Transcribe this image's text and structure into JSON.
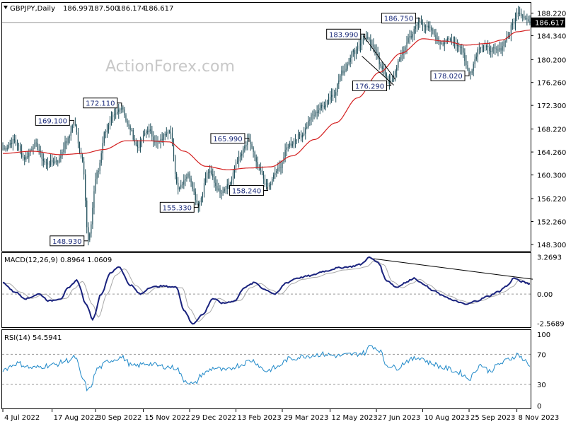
{
  "chart_data": {
    "type": "candlestick",
    "header": {
      "symbol": "GBPJPY,Daily",
      "ohlc": [
        "186.997",
        "187.500",
        "186.174",
        "186.617"
      ]
    },
    "watermark": "ActionForex.com",
    "current_price_label": "186.617",
    "current_price": 186.617,
    "price_axis": {
      "ylim": [
        147.2,
        190.0
      ],
      "ticks": [
        188.22,
        184.34,
        180.2,
        176.26,
        172.3,
        168.22,
        164.26,
        160.3,
        156.22,
        152.26,
        148.3
      ],
      "tick_labels": [
        "188.220",
        "184.340",
        "180.200",
        "176.260",
        "172.300",
        "168.220",
        "164.260",
        "160.300",
        "156.220",
        "152.260",
        "148.300"
      ]
    },
    "x_axis": {
      "bars": 357,
      "ticks": [
        {
          "bar": 0,
          "label": "4 Jul 2022"
        },
        {
          "bar": 34,
          "label": "17 Aug 2022"
        },
        {
          "bar": 64,
          "label": "30 Sep 2022"
        },
        {
          "bar": 97,
          "label": "15 Nov 2022"
        },
        {
          "bar": 129,
          "label": "29 Dec 2022"
        },
        {
          "bar": 161,
          "label": "13 Feb 2023"
        },
        {
          "bar": 193,
          "label": "29 Mar 2023"
        },
        {
          "bar": 226,
          "label": "12 May 2023"
        },
        {
          "bar": 258,
          "label": "27 Jun 2023"
        },
        {
          "bar": 290,
          "label": "10 Aug 2023"
        },
        {
          "bar": 322,
          "label": "25 Sep 2023"
        },
        {
          "bar": 355,
          "label": "8 Nov 2023"
        }
      ]
    },
    "price_anchors": [
      [
        0,
        164.8
      ],
      [
        8,
        166.2
      ],
      [
        15,
        163.2
      ],
      [
        22,
        165.5
      ],
      [
        30,
        162.3
      ],
      [
        38,
        162.8
      ],
      [
        44,
        166.0
      ],
      [
        49,
        169.1
      ],
      [
        55,
        163.0
      ],
      [
        59,
        148.93
      ],
      [
        65,
        160.5
      ],
      [
        71,
        168.0
      ],
      [
        77,
        170.5
      ],
      [
        82,
        172.11
      ],
      [
        87,
        168.5
      ],
      [
        93,
        165.2
      ],
      [
        100,
        168.0
      ],
      [
        107,
        165.8
      ],
      [
        115,
        168.2
      ],
      [
        121,
        158.2
      ],
      [
        128,
        160.3
      ],
      [
        135,
        155.33
      ],
      [
        142,
        160.8
      ],
      [
        150,
        157.5
      ],
      [
        157,
        158.9
      ],
      [
        162,
        163.0
      ],
      [
        170,
        165.99
      ],
      [
        177,
        161.2
      ],
      [
        183,
        158.24
      ],
      [
        190,
        161.2
      ],
      [
        198,
        165.6
      ],
      [
        206,
        167.2
      ],
      [
        214,
        170.5
      ],
      [
        220,
        172.0
      ],
      [
        228,
        174.2
      ],
      [
        235,
        178.2
      ],
      [
        242,
        181.5
      ],
      [
        250,
        183.99
      ],
      [
        257,
        182.0
      ],
      [
        262,
        178.5
      ],
      [
        268,
        176.29
      ],
      [
        275,
        180.8
      ],
      [
        281,
        184.2
      ],
      [
        288,
        186.75
      ],
      [
        295,
        185.4
      ],
      [
        302,
        183.2
      ],
      [
        309,
        183.5
      ],
      [
        316,
        182.5
      ],
      [
        322,
        178.02
      ],
      [
        330,
        182.6
      ],
      [
        336,
        182.0
      ],
      [
        342,
        181.7
      ],
      [
        349,
        184.2
      ],
      [
        352,
        186.3
      ],
      [
        356,
        188.5
      ],
      [
        360,
        187.7
      ],
      [
        364,
        186.617
      ]
    ],
    "price_labels": [
      {
        "bar": 59,
        "price": 148.93,
        "text": "148.930"
      },
      {
        "bar": 49,
        "price": 169.1,
        "text": "169.100"
      },
      {
        "bar": 82,
        "price": 172.11,
        "text": "172.110"
      },
      {
        "bar": 135,
        "price": 155.33,
        "text": "155.330"
      },
      {
        "bar": 170,
        "price": 165.99,
        "text": "165.990"
      },
      {
        "bar": 183,
        "price": 158.24,
        "text": "158.240"
      },
      {
        "bar": 250,
        "price": 183.99,
        "text": "183.990"
      },
      {
        "bar": 268,
        "price": 176.29,
        "text": "176.290"
      },
      {
        "bar": 288,
        "price": 186.75,
        "text": "186.750"
      },
      {
        "bar": 322,
        "price": 178.02,
        "text": "178.020"
      }
    ],
    "channel_lines": [
      {
        "from": [
          249,
          184.3
        ],
        "to": [
          271,
          176.8
        ]
      },
      {
        "from": [
          248,
          180.8
        ],
        "to": [
          270,
          175.8
        ]
      }
    ],
    "sma_anchors": [
      [
        0,
        164.0
      ],
      [
        20,
        164.4
      ],
      [
        40,
        163.8
      ],
      [
        55,
        164.0
      ],
      [
        70,
        164.7
      ],
      [
        85,
        166.2
      ],
      [
        100,
        166.2
      ],
      [
        115,
        166.0
      ],
      [
        125,
        164.4
      ],
      [
        140,
        161.8
      ],
      [
        155,
        161.2
      ],
      [
        170,
        161.5
      ],
      [
        185,
        161.7
      ],
      [
        200,
        163.6
      ],
      [
        215,
        166.4
      ],
      [
        230,
        169.3
      ],
      [
        245,
        173.6
      ],
      [
        260,
        178.0
      ],
      [
        275,
        181.3
      ],
      [
        290,
        183.8
      ],
      [
        305,
        183.4
      ],
      [
        320,
        182.7
      ],
      [
        335,
        183.0
      ],
      [
        345,
        183.6
      ],
      [
        355,
        185.0
      ],
      [
        364,
        185.3
      ]
    ],
    "macd": {
      "label": "MACD(12,26,9) 0.8964 1.0609",
      "ylim": [
        -2.9,
        3.6
      ],
      "tick_labels": [
        {
          "value": 3.2693,
          "text": "3.2693"
        },
        {
          "value": 0.0,
          "text": "0.00"
        },
        {
          "value": -2.5689,
          "text": "-2.5689"
        }
      ],
      "anchors": [
        [
          0,
          1.0
        ],
        [
          8,
          0.2
        ],
        [
          16,
          -0.4
        ],
        [
          25,
          0.0
        ],
        [
          32,
          -0.6
        ],
        [
          40,
          -0.4
        ],
        [
          45,
          0.5
        ],
        [
          51,
          1.2
        ],
        [
          58,
          -1.0
        ],
        [
          62,
          -2.2
        ],
        [
          68,
          0.0
        ],
        [
          74,
          1.8
        ],
        [
          80,
          2.4
        ],
        [
          88,
          0.8
        ],
        [
          95,
          0.0
        ],
        [
          102,
          0.6
        ],
        [
          110,
          0.7
        ],
        [
          120,
          0.6
        ],
        [
          125,
          -1.4
        ],
        [
          131,
          -2.6
        ],
        [
          138,
          -1.8
        ],
        [
          145,
          -0.4
        ],
        [
          152,
          -0.8
        ],
        [
          160,
          -0.6
        ],
        [
          167,
          0.6
        ],
        [
          174,
          1.0
        ],
        [
          181,
          0.4
        ],
        [
          188,
          0.0
        ],
        [
          196,
          1.0
        ],
        [
          203,
          1.4
        ],
        [
          212,
          1.6
        ],
        [
          222,
          2.0
        ],
        [
          232,
          2.3
        ],
        [
          240,
          2.4
        ],
        [
          247,
          2.6
        ],
        [
          253,
          3.2
        ],
        [
          259,
          2.8
        ],
        [
          265,
          1.2
        ],
        [
          272,
          0.6
        ],
        [
          278,
          1.0
        ],
        [
          284,
          1.4
        ],
        [
          290,
          0.9
        ],
        [
          297,
          0.3
        ],
        [
          305,
          -0.2
        ],
        [
          312,
          -0.6
        ],
        [
          320,
          -0.9
        ],
        [
          327,
          -0.6
        ],
        [
          335,
          -0.2
        ],
        [
          342,
          0.2
        ],
        [
          348,
          0.7
        ],
        [
          353,
          1.4
        ],
        [
          358,
          1.1
        ],
        [
          364,
          0.9
        ]
      ],
      "signal_lag": 4,
      "trendline": {
        "from": [
          256,
          3.1
        ],
        "to": [
          366,
          1.3
        ]
      }
    },
    "rsi": {
      "label": "RSI(14) 54.5941",
      "ylim": [
        0,
        100
      ],
      "tick_labels": [
        {
          "value": 100,
          "text": "100"
        },
        {
          "value": 70,
          "text": "70"
        },
        {
          "value": 30,
          "text": "30"
        },
        {
          "value": 0,
          "text": "0"
        }
      ],
      "anchors": [
        [
          0,
          50
        ],
        [
          10,
          58
        ],
        [
          20,
          52
        ],
        [
          35,
          56
        ],
        [
          45,
          62
        ],
        [
          50,
          66
        ],
        [
          55,
          38
        ],
        [
          59,
          22
        ],
        [
          66,
          52
        ],
        [
          74,
          62
        ],
        [
          82,
          66
        ],
        [
          90,
          54
        ],
        [
          100,
          58
        ],
        [
          110,
          54
        ],
        [
          120,
          52
        ],
        [
          125,
          36
        ],
        [
          132,
          30
        ],
        [
          138,
          44
        ],
        [
          146,
          52
        ],
        [
          154,
          48
        ],
        [
          162,
          55
        ],
        [
          172,
          62
        ],
        [
          182,
          48
        ],
        [
          188,
          52
        ],
        [
          198,
          64
        ],
        [
          210,
          68
        ],
        [
          220,
          70
        ],
        [
          232,
          68
        ],
        [
          242,
          70
        ],
        [
          250,
          72
        ],
        [
          254,
          82
        ],
        [
          260,
          76
        ],
        [
          265,
          56
        ],
        [
          272,
          52
        ],
        [
          280,
          62
        ],
        [
          288,
          66
        ],
        [
          296,
          58
        ],
        [
          305,
          52
        ],
        [
          315,
          46
        ],
        [
          322,
          38
        ],
        [
          330,
          56
        ],
        [
          336,
          48
        ],
        [
          344,
          58
        ],
        [
          350,
          64
        ],
        [
          356,
          70
        ],
        [
          360,
          62
        ],
        [
          364,
          54
        ]
      ]
    }
  }
}
